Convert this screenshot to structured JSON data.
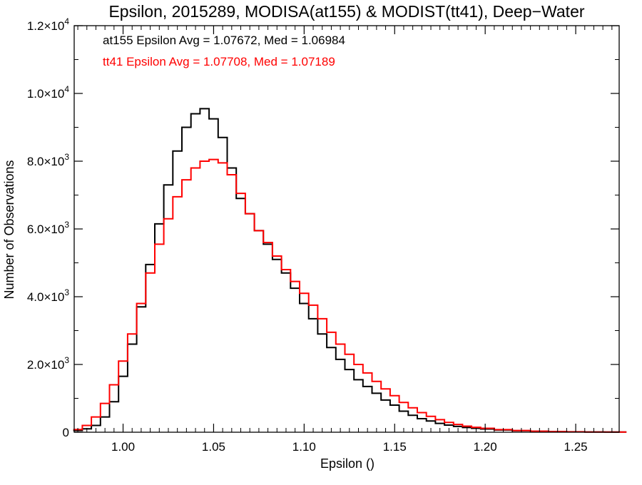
{
  "chart_data": {
    "type": "histogram-step",
    "title": "Epsilon, 2015289, MODISA(at155) & MODIST(tt41), Deep−Water",
    "xlabel": "Epsilon ()",
    "ylabel": "Number of Observations",
    "xlim": [
      0.973,
      1.274
    ],
    "ylim": [
      0,
      12000
    ],
    "x_ticks": [
      {
        "value": 1.0,
        "label": "1.00"
      },
      {
        "value": 1.05,
        "label": "1.05"
      },
      {
        "value": 1.1,
        "label": "1.10"
      },
      {
        "value": 1.15,
        "label": "1.15"
      },
      {
        "value": 1.2,
        "label": "1.20"
      },
      {
        "value": 1.25,
        "label": "1.25"
      }
    ],
    "y_ticks": [
      {
        "value": 0,
        "mant": "0",
        "exp": ""
      },
      {
        "value": 2000,
        "mant": "2.0×10",
        "exp": "3"
      },
      {
        "value": 4000,
        "mant": "4.0×10",
        "exp": "3"
      },
      {
        "value": 6000,
        "mant": "6.0×10",
        "exp": "3"
      },
      {
        "value": 8000,
        "mant": "8.0×10",
        "exp": "3"
      },
      {
        "value": 10000,
        "mant": "1.0×10",
        "exp": "4"
      },
      {
        "value": 12000,
        "mant": "1.2×10",
        "exp": "4"
      }
    ],
    "grid": false,
    "annotations": [
      {
        "text": "at155 Epsilon Avg = 1.07672, Med = 1.06984",
        "color": "#000000"
      },
      {
        "text": "tt41 Epsilon Avg = 1.07708, Med = 1.07189",
        "color": "#ff0000"
      }
    ],
    "series": [
      {
        "color": "#000000",
        "x": [
          0.975,
          0.98,
          0.985,
          0.99,
          0.995,
          1.0,
          1.005,
          1.01,
          1.015,
          1.02,
          1.025,
          1.03,
          1.035,
          1.04,
          1.045,
          1.05,
          1.055,
          1.06,
          1.065,
          1.07,
          1.075,
          1.08,
          1.085,
          1.09,
          1.095,
          1.1,
          1.105,
          1.11,
          1.115,
          1.12,
          1.125,
          1.13,
          1.135,
          1.14,
          1.145,
          1.15,
          1.155,
          1.16,
          1.165,
          1.17,
          1.175,
          1.18,
          1.185,
          1.19,
          1.195,
          1.2,
          1.21,
          1.22,
          1.23,
          1.24,
          1.25,
          1.26,
          1.272
        ],
        "y": [
          50,
          100,
          200,
          450,
          900,
          1650,
          2600,
          3700,
          4950,
          6150,
          7300,
          8300,
          9000,
          9400,
          9550,
          9250,
          8700,
          7800,
          6900,
          6450,
          5950,
          5550,
          5100,
          4700,
          4250,
          3800,
          3350,
          2900,
          2500,
          2150,
          1850,
          1550,
          1350,
          1150,
          950,
          800,
          620,
          500,
          400,
          330,
          260,
          210,
          170,
          140,
          115,
          95,
          65,
          45,
          30,
          20,
          12,
          8,
          5
        ]
      },
      {
        "color": "#ff0000",
        "x": [
          0.975,
          0.98,
          0.985,
          0.99,
          0.995,
          1.0,
          1.005,
          1.01,
          1.015,
          1.02,
          1.025,
          1.03,
          1.035,
          1.04,
          1.045,
          1.05,
          1.055,
          1.06,
          1.065,
          1.07,
          1.075,
          1.08,
          1.085,
          1.09,
          1.095,
          1.1,
          1.105,
          1.11,
          1.115,
          1.12,
          1.125,
          1.13,
          1.135,
          1.14,
          1.145,
          1.15,
          1.155,
          1.16,
          1.165,
          1.17,
          1.175,
          1.18,
          1.185,
          1.19,
          1.195,
          1.2,
          1.21,
          1.22,
          1.23,
          1.24,
          1.25,
          1.26,
          1.272
        ],
        "y": [
          80,
          200,
          450,
          850,
          1400,
          2100,
          2900,
          3800,
          4700,
          5550,
          6300,
          6950,
          7450,
          7800,
          8000,
          8050,
          7950,
          7600,
          7050,
          6450,
          5950,
          5600,
          5200,
          4800,
          4450,
          4100,
          3750,
          3350,
          2950,
          2600,
          2300,
          2000,
          1750,
          1500,
          1280,
          1080,
          880,
          720,
          580,
          470,
          370,
          290,
          230,
          180,
          145,
          115,
          75,
          50,
          30,
          18,
          10,
          6,
          4
        ]
      }
    ]
  }
}
